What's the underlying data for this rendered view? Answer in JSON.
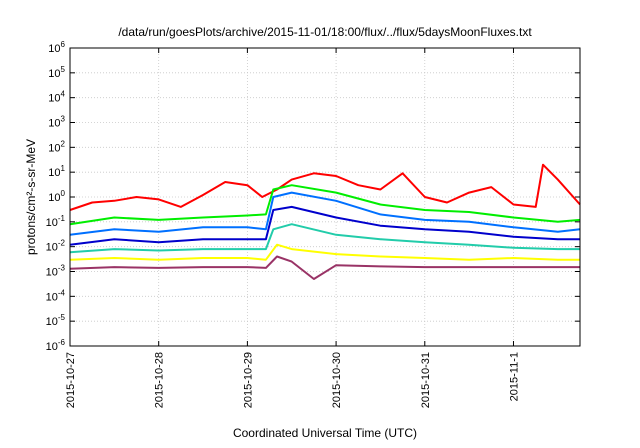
{
  "chart_data": {
    "type": "line",
    "title": "/data/run/goesPlots/archive/2015-11-01/18:00/flux/../flux/5daysMoonFluxes.txt",
    "xlabel": "Coordinated Universal Time (UTC)",
    "ylabel": "protons/cm²-s-sr-MeV",
    "y_scale": "log",
    "ylim": [
      1e-06,
      1000000.0
    ],
    "xlim": [
      "2015-10-27T00:00",
      "2015-11-01T18:00"
    ],
    "grid": true,
    "legend": "none",
    "x_ticks": [
      "2015-10-27",
      "2015-10-28",
      "2015-10-29",
      "2015-10-30",
      "2015-10-31",
      "2015-11-1"
    ],
    "y_ticks": [
      {
        "base": "10",
        "exp": "-6",
        "value": 1e-06
      },
      {
        "base": "10",
        "exp": "-5",
        "value": 1e-05
      },
      {
        "base": "10",
        "exp": "-4",
        "value": 0.0001
      },
      {
        "base": "10",
        "exp": "-3",
        "value": 0.001
      },
      {
        "base": "10",
        "exp": "-2",
        "value": 0.01
      },
      {
        "base": "10",
        "exp": "-1",
        "value": 0.1
      },
      {
        "base": "10",
        "exp": "0",
        "value": 1
      },
      {
        "base": "10",
        "exp": "1",
        "value": 10
      },
      {
        "base": "10",
        "exp": "2",
        "value": 100
      },
      {
        "base": "10",
        "exp": "3",
        "value": 1000
      },
      {
        "base": "10",
        "exp": "4",
        "value": 10000
      },
      {
        "base": "10",
        "exp": "5",
        "value": 100000
      },
      {
        "base": "10",
        "exp": "6",
        "value": 1000000
      }
    ],
    "series": [
      {
        "color": "#ff0000",
        "x": [
          "2015-10-27T00:00",
          "2015-10-27T06:00",
          "2015-10-27T12:00",
          "2015-10-27T18:00",
          "2015-10-28T00:00",
          "2015-10-28T06:00",
          "2015-10-28T12:00",
          "2015-10-28T18:00",
          "2015-10-29T00:00",
          "2015-10-29T04:00",
          "2015-10-29T08:00",
          "2015-10-29T12:00",
          "2015-10-29T18:00",
          "2015-10-30T00:00",
          "2015-10-30T06:00",
          "2015-10-30T12:00",
          "2015-10-30T18:00",
          "2015-10-31T00:00",
          "2015-10-31T06:00",
          "2015-10-31T12:00",
          "2015-10-31T18:00",
          "2015-11-01T00:00",
          "2015-11-01T06:00",
          "2015-11-01T08:00",
          "2015-11-01T12:00",
          "2015-11-01T18:00"
        ],
        "values": [
          0.3,
          0.6,
          0.7,
          1.0,
          0.8,
          0.4,
          1.2,
          4.0,
          3.0,
          1.0,
          2.0,
          5.0,
          9.0,
          7.0,
          3.0,
          2.0,
          9.0,
          1.0,
          0.6,
          1.5,
          2.5,
          0.5,
          0.4,
          20,
          5,
          0.5
        ]
      },
      {
        "color": "#00ee00",
        "x": [
          "2015-10-27T00:00",
          "2015-10-27T12:00",
          "2015-10-28T00:00",
          "2015-10-28T12:00",
          "2015-10-29T00:00",
          "2015-10-29T05:00",
          "2015-10-29T07:00",
          "2015-10-29T12:00",
          "2015-10-30T00:00",
          "2015-10-30T12:00",
          "2015-10-31T00:00",
          "2015-10-31T12:00",
          "2015-11-01T00:00",
          "2015-11-01T12:00",
          "2015-11-01T18:00"
        ],
        "values": [
          0.08,
          0.15,
          0.12,
          0.15,
          0.18,
          0.2,
          2.0,
          3.0,
          1.5,
          0.5,
          0.3,
          0.25,
          0.15,
          0.1,
          0.12
        ]
      },
      {
        "color": "#0070ff",
        "x": [
          "2015-10-27T00:00",
          "2015-10-27T12:00",
          "2015-10-28T00:00",
          "2015-10-28T12:00",
          "2015-10-29T00:00",
          "2015-10-29T05:00",
          "2015-10-29T07:00",
          "2015-10-29T12:00",
          "2015-10-30T00:00",
          "2015-10-30T12:00",
          "2015-10-31T00:00",
          "2015-10-31T12:00",
          "2015-11-01T00:00",
          "2015-11-01T12:00",
          "2015-11-01T18:00"
        ],
        "values": [
          0.03,
          0.05,
          0.04,
          0.06,
          0.06,
          0.05,
          1.0,
          1.5,
          0.7,
          0.2,
          0.12,
          0.1,
          0.06,
          0.04,
          0.05
        ]
      },
      {
        "color": "#0000cc",
        "x": [
          "2015-10-27T00:00",
          "2015-10-27T12:00",
          "2015-10-28T00:00",
          "2015-10-28T12:00",
          "2015-10-29T00:00",
          "2015-10-29T05:00",
          "2015-10-29T07:00",
          "2015-10-29T12:00",
          "2015-10-30T00:00",
          "2015-10-30T12:00",
          "2015-10-31T00:00",
          "2015-10-31T12:00",
          "2015-11-01T00:00",
          "2015-11-01T12:00",
          "2015-11-01T18:00"
        ],
        "values": [
          0.012,
          0.02,
          0.015,
          0.02,
          0.02,
          0.02,
          0.3,
          0.4,
          0.15,
          0.07,
          0.05,
          0.04,
          0.025,
          0.02,
          0.02
        ]
      },
      {
        "color": "#22ccaa",
        "x": [
          "2015-10-27T00:00",
          "2015-10-27T12:00",
          "2015-10-28T00:00",
          "2015-10-28T12:00",
          "2015-10-29T00:00",
          "2015-10-29T05:00",
          "2015-10-29T07:00",
          "2015-10-29T12:00",
          "2015-10-30T00:00",
          "2015-10-30T12:00",
          "2015-10-31T00:00",
          "2015-10-31T12:00",
          "2015-11-01T00:00",
          "2015-11-01T12:00",
          "2015-11-01T18:00"
        ],
        "values": [
          0.006,
          0.008,
          0.007,
          0.008,
          0.008,
          0.008,
          0.05,
          0.08,
          0.03,
          0.02,
          0.015,
          0.012,
          0.009,
          0.008,
          0.008
        ]
      },
      {
        "color": "#ffff00",
        "x": [
          "2015-10-27T00:00",
          "2015-10-27T12:00",
          "2015-10-28T00:00",
          "2015-10-28T12:00",
          "2015-10-29T00:00",
          "2015-10-29T05:00",
          "2015-10-29T08:00",
          "2015-10-29T12:00",
          "2015-10-30T00:00",
          "2015-10-30T12:00",
          "2015-10-31T00:00",
          "2015-10-31T12:00",
          "2015-11-01T00:00",
          "2015-11-01T12:00",
          "2015-11-01T18:00"
        ],
        "values": [
          0.003,
          0.0035,
          0.003,
          0.0035,
          0.0035,
          0.003,
          0.012,
          0.008,
          0.005,
          0.004,
          0.0035,
          0.003,
          0.0035,
          0.003,
          0.003
        ]
      },
      {
        "color": "#993366",
        "x": [
          "2015-10-27T00:00",
          "2015-10-27T12:00",
          "2015-10-28T00:00",
          "2015-10-28T12:00",
          "2015-10-29T00:00",
          "2015-10-29T05:00",
          "2015-10-29T08:00",
          "2015-10-29T12:00",
          "2015-10-29T18:00",
          "2015-10-30T00:00",
          "2015-10-30T12:00",
          "2015-10-31T00:00",
          "2015-10-31T12:00",
          "2015-11-01T00:00",
          "2015-11-01T12:00",
          "2015-11-01T18:00"
        ],
        "values": [
          0.0013,
          0.0015,
          0.0014,
          0.0015,
          0.0015,
          0.0014,
          0.004,
          0.0025,
          0.0005,
          0.0018,
          0.0016,
          0.0015,
          0.0015,
          0.0015,
          0.0015,
          0.0015
        ]
      }
    ]
  }
}
